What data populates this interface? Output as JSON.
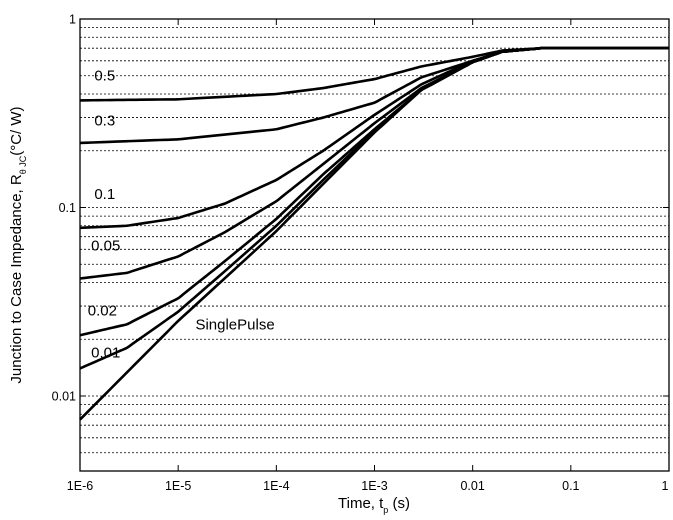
{
  "chart_data": {
    "type": "line",
    "x_scale": "log",
    "y_scale": "log",
    "xlim": [
      1e-06,
      1
    ],
    "ylim": [
      0.004,
      1
    ],
    "grid": "horizontal dotted at minor decades",
    "xlabel": {
      "main": "Time, t",
      "sub": "p",
      "tail": " (s)"
    },
    "ylabel": {
      "main": "Junction to Case Impedance, R",
      "sub": "θ JC",
      "tail": "(°C/ W)"
    },
    "x_ticks": [
      {
        "value": 1e-06,
        "label": "1E-6"
      },
      {
        "value": 1e-05,
        "label": "1E-5"
      },
      {
        "value": 0.0001,
        "label": "1E-4"
      },
      {
        "value": 0.001,
        "label": "1E-3"
      },
      {
        "value": 0.01,
        "label": "0.01"
      },
      {
        "value": 0.1,
        "label": "0.1"
      },
      {
        "value": 1,
        "label": "1"
      }
    ],
    "y_ticks": [
      {
        "value": 1,
        "label": "1"
      },
      {
        "value": 0.1,
        "label": "0.1"
      },
      {
        "value": 0.01,
        "label": "0.01"
      }
    ],
    "series": [
      {
        "name": "0.5",
        "label_pos": {
          "x": 1.4e-06,
          "y": 0.5
        },
        "x": [
          1e-06,
          1e-05,
          0.0001,
          0.0003,
          0.001,
          0.003,
          0.01,
          0.02,
          0.05,
          1
        ],
        "y": [
          0.37,
          0.375,
          0.4,
          0.43,
          0.48,
          0.56,
          0.63,
          0.68,
          0.7,
          0.7
        ]
      },
      {
        "name": "0.3",
        "label_pos": {
          "x": 1.4e-06,
          "y": 0.29
        },
        "x": [
          1e-06,
          1e-05,
          0.0001,
          0.0003,
          0.001,
          0.003,
          0.01,
          0.02,
          0.05,
          1
        ],
        "y": [
          0.22,
          0.23,
          0.26,
          0.3,
          0.36,
          0.49,
          0.6,
          0.67,
          0.7,
          0.7
        ]
      },
      {
        "name": "0.1",
        "label_pos": {
          "x": 1.4e-06,
          "y": 0.118
        },
        "x": [
          1e-06,
          3e-06,
          1e-05,
          3e-05,
          0.0001,
          0.0003,
          0.001,
          0.003,
          0.01,
          0.02,
          0.05,
          1
        ],
        "y": [
          0.078,
          0.08,
          0.088,
          0.105,
          0.14,
          0.2,
          0.31,
          0.45,
          0.6,
          0.67,
          0.7,
          0.7
        ]
      },
      {
        "name": "0.05",
        "label_pos": {
          "x": 1.3e-06,
          "y": 0.063
        },
        "x": [
          1e-06,
          3e-06,
          1e-05,
          3e-05,
          0.0001,
          0.0003,
          0.001,
          0.003,
          0.01,
          0.02,
          0.05,
          1
        ],
        "y": [
          0.042,
          0.045,
          0.055,
          0.074,
          0.108,
          0.17,
          0.28,
          0.43,
          0.59,
          0.67,
          0.7,
          0.7
        ]
      },
      {
        "name": "0.02",
        "label_pos": {
          "x": 1.2e-06,
          "y": 0.0285
        },
        "x": [
          1e-06,
          3e-06,
          1e-05,
          3e-05,
          0.0001,
          0.0003,
          0.001,
          0.003,
          0.01,
          0.02,
          0.05,
          1
        ],
        "y": [
          0.021,
          0.024,
          0.033,
          0.052,
          0.087,
          0.15,
          0.26,
          0.42,
          0.59,
          0.67,
          0.7,
          0.7
        ]
      },
      {
        "name": "0.01",
        "label_pos": {
          "x": 1.3e-06,
          "y": 0.017
        },
        "x": [
          1e-06,
          3e-06,
          1e-05,
          3e-05,
          0.0001,
          0.0003,
          0.001,
          0.003,
          0.01,
          0.02,
          0.05,
          1
        ],
        "y": [
          0.014,
          0.018,
          0.028,
          0.046,
          0.08,
          0.14,
          0.255,
          0.42,
          0.59,
          0.67,
          0.7,
          0.7
        ]
      },
      {
        "name": "SinglePulse",
        "label_pos": {
          "x": 1.5e-05,
          "y": 0.024
        },
        "x": [
          1e-06,
          1e-05,
          0.0001,
          0.001,
          0.003,
          0.01,
          0.02,
          0.05,
          1
        ],
        "y": [
          0.0075,
          0.025,
          0.075,
          0.25,
          0.42,
          0.59,
          0.67,
          0.7,
          0.7
        ]
      }
    ]
  }
}
